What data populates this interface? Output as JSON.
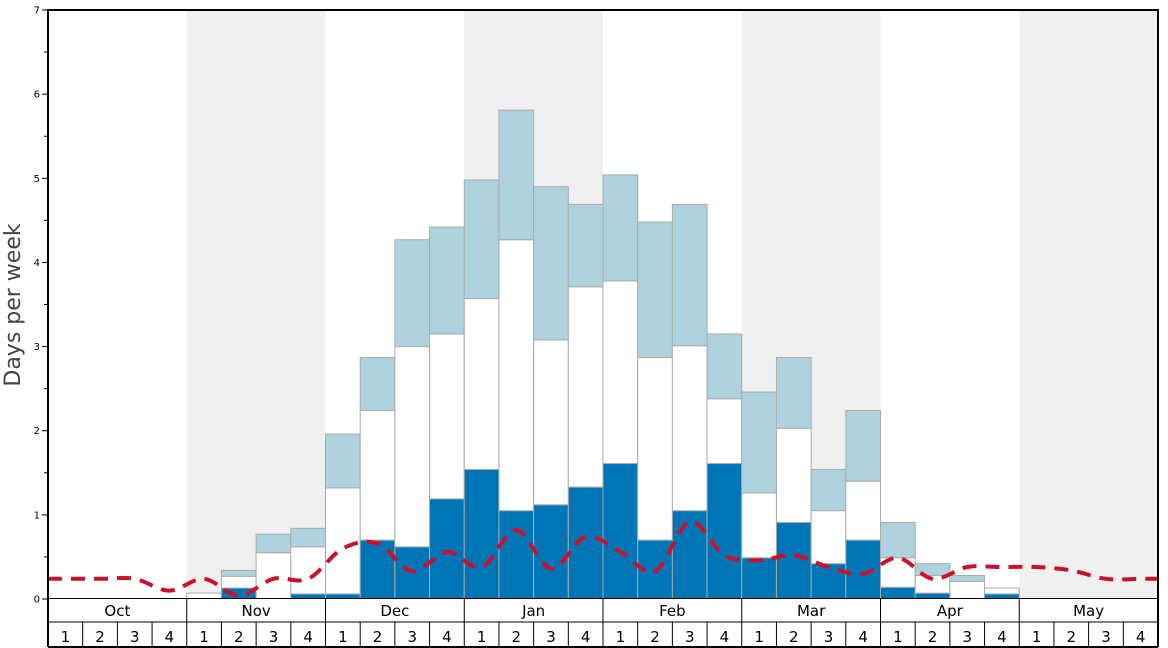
{
  "chart_data": {
    "type": "bar",
    "ylabel": "Days per week",
    "ylim": [
      0,
      7
    ],
    "yticks": [
      "0",
      "1",
      "2",
      "3",
      "4",
      "5",
      "6",
      "7"
    ],
    "months": [
      "Oct",
      "Nov",
      "Dec",
      "Jan",
      "Feb",
      "Mar",
      "Apr",
      "May"
    ],
    "weeks": [
      "1",
      "2",
      "3",
      "4"
    ],
    "stacked": true,
    "colors": {
      "bottom": "#0075b5",
      "middle": "#ffffff",
      "top": "#aed3df",
      "line": "#cc0f2a",
      "band": "#f0f0f0",
      "bar_edge": "#aaaaaa"
    },
    "series": [
      {
        "values": [
          0,
          0,
          0,
          0,
          0,
          0.13,
          0,
          0.06,
          0.06,
          0.7,
          0.62,
          1.19,
          1.54,
          1.05,
          1.12,
          1.33,
          1.61,
          0.7,
          1.05,
          1.61,
          0.49,
          0.91,
          0.42,
          0.7,
          0.14,
          0.07,
          0,
          0.06,
          0,
          0,
          0,
          0
        ]
      },
      {
        "values": [
          0,
          0,
          0,
          0,
          0.07,
          0.14,
          0.55,
          0.56,
          1.26,
          1.54,
          2.38,
          1.96,
          2.03,
          3.22,
          1.96,
          2.38,
          2.17,
          2.17,
          1.96,
          0.77,
          0.77,
          1.12,
          0.63,
          0.7,
          0.35,
          0.21,
          0.21,
          0.07,
          0,
          0,
          0,
          0
        ]
      },
      {
        "values": [
          0,
          0,
          0,
          0,
          0,
          0.07,
          0.22,
          0.22,
          0.64,
          0.63,
          1.27,
          1.27,
          1.41,
          1.54,
          1.82,
          0.98,
          1.26,
          1.61,
          1.68,
          0.77,
          1.2,
          0.84,
          0.49,
          0.84,
          0.42,
          0.14,
          0.07,
          0,
          0,
          0,
          0,
          0
        ]
      }
    ],
    "line": {
      "style": "dashed",
      "values": [
        0.24,
        0.24,
        0.24,
        0.1,
        0.24,
        0.04,
        0.24,
        0.24,
        0.6,
        0.66,
        0.33,
        0.56,
        0.38,
        0.82,
        0.36,
        0.74,
        0.56,
        0.33,
        0.92,
        0.52,
        0.46,
        0.52,
        0.38,
        0.3,
        0.49,
        0.24,
        0.38,
        0.38,
        0.38,
        0.34,
        0.24,
        0.24
      ]
    }
  }
}
